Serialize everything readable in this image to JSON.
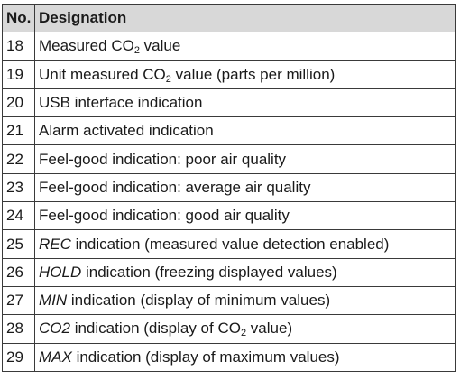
{
  "header": {
    "no": "No.",
    "designation": "Designation"
  },
  "rows": [
    {
      "no": "18",
      "pre": "",
      "text": "Measured CO",
      "sub": "2",
      "post": " value"
    },
    {
      "no": "19",
      "pre": "",
      "text": "Unit measured CO",
      "sub": "2",
      "post": " value (parts per million)"
    },
    {
      "no": "20",
      "pre": "",
      "text": "USB interface indication",
      "sub": "",
      "post": ""
    },
    {
      "no": "21",
      "pre": "",
      "text": "Alarm activated indication",
      "sub": "",
      "post": ""
    },
    {
      "no": "22",
      "pre": "",
      "text": "Feel-good indication: poor air quality",
      "sub": "",
      "post": ""
    },
    {
      "no": "23",
      "pre": "",
      "text": "Feel-good indication: average air quality",
      "sub": "",
      "post": ""
    },
    {
      "no": "24",
      "pre": "",
      "text": "Feel-good indication: good air quality",
      "sub": "",
      "post": ""
    },
    {
      "no": "25",
      "pre": "REC",
      "text": " indication (measured value detection enabled)",
      "sub": "",
      "post": ""
    },
    {
      "no": "26",
      "pre": "HOLD",
      "text": " indication (freezing displayed values)",
      "sub": "",
      "post": ""
    },
    {
      "no": "27",
      "pre": "MIN",
      "text": " indication (display of minimum values)",
      "sub": "",
      "post": ""
    },
    {
      "no": "28",
      "pre": "CO2",
      "text": " indication (display of CO",
      "sub": "2",
      "post": " value)"
    },
    {
      "no": "29",
      "pre": "MAX",
      "text": " indication (display of maximum values)",
      "sub": "",
      "post": ""
    }
  ]
}
